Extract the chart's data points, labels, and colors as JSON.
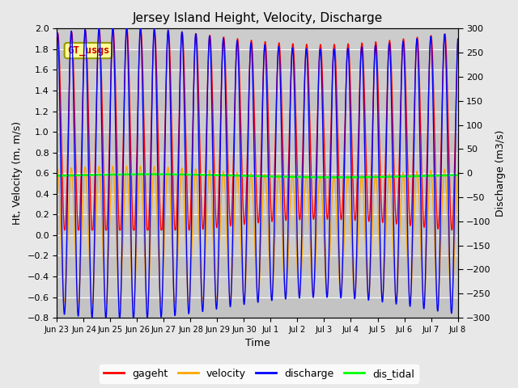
{
  "title": "Jersey Island Height, Velocity, Discharge",
  "xlabel": "Time",
  "ylabel_left": "Ht, Velocity (m, m/s)",
  "ylabel_right": "Discharge (m3/s)",
  "ylim_left": [
    -0.8,
    2.0
  ],
  "ylim_right": [
    -300,
    300
  ],
  "x_tick_labels": [
    "Jun 23",
    "Jun 24",
    "Jun 25",
    "Jun 26",
    "Jun 27",
    "Jun 28",
    "Jun 29",
    "Jun 30",
    "Jul 1",
    "Jul 2",
    "Jul 3",
    "Jul 4",
    "Jul 5",
    "Jul 6",
    "Jul 7",
    "Jul 8"
  ],
  "fig_bg_color": "#e8e8e8",
  "plot_bg_color": "#cccccc",
  "annotation_text": "GT_usgs",
  "gt_usgs_text_color": "#cc0000",
  "gt_usgs_bg": "#ffff99",
  "gt_usgs_border": "#999900",
  "tidal_period_hours": 12.42,
  "n_points": 3000,
  "dis_tidal_value": 0.575
}
